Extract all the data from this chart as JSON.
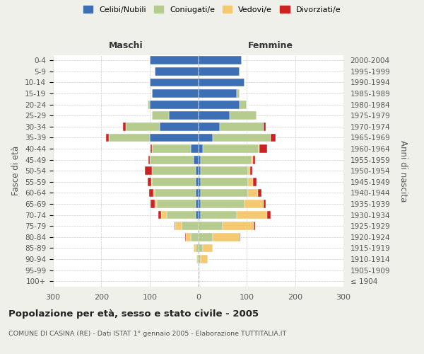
{
  "age_groups": [
    "100+",
    "95-99",
    "90-94",
    "85-89",
    "80-84",
    "75-79",
    "70-74",
    "65-69",
    "60-64",
    "55-59",
    "50-54",
    "45-49",
    "40-44",
    "35-39",
    "30-34",
    "25-29",
    "20-24",
    "15-19",
    "10-14",
    "5-9",
    "0-4"
  ],
  "birth_years": [
    "≤ 1904",
    "1905-1909",
    "1910-1914",
    "1915-1919",
    "1920-1924",
    "1925-1929",
    "1930-1934",
    "1935-1939",
    "1940-1944",
    "1945-1949",
    "1950-1954",
    "1955-1959",
    "1960-1964",
    "1965-1969",
    "1970-1974",
    "1975-1979",
    "1980-1984",
    "1985-1989",
    "1990-1994",
    "1995-1999",
    "2000-2004"
  ],
  "males_celibi": [
    0,
    0,
    0,
    0,
    0,
    0,
    5,
    5,
    5,
    5,
    5,
    10,
    15,
    100,
    80,
    60,
    100,
    95,
    100,
    90,
    100
  ],
  "males_coniugati": [
    0,
    0,
    2,
    5,
    15,
    35,
    60,
    80,
    85,
    90,
    90,
    90,
    80,
    85,
    70,
    35,
    5,
    0,
    0,
    0,
    0
  ],
  "males_vedovi": [
    0,
    0,
    2,
    5,
    10,
    12,
    12,
    5,
    2,
    2,
    0,
    0,
    0,
    0,
    0,
    0,
    0,
    0,
    0,
    0,
    0
  ],
  "males_divorziati": [
    0,
    0,
    0,
    0,
    2,
    2,
    5,
    8,
    10,
    8,
    15,
    3,
    3,
    5,
    5,
    0,
    0,
    0,
    0,
    0,
    0
  ],
  "females_nubili": [
    0,
    0,
    0,
    0,
    0,
    0,
    5,
    5,
    5,
    5,
    5,
    5,
    10,
    30,
    45,
    65,
    85,
    80,
    95,
    85,
    90
  ],
  "females_coniugate": [
    0,
    0,
    5,
    10,
    30,
    50,
    75,
    90,
    98,
    98,
    98,
    105,
    115,
    120,
    90,
    55,
    15,
    5,
    0,
    0,
    0
  ],
  "females_vedove": [
    0,
    2,
    15,
    20,
    55,
    65,
    62,
    40,
    20,
    10,
    5,
    3,
    2,
    0,
    0,
    0,
    0,
    0,
    0,
    0,
    0
  ],
  "females_divorziate": [
    0,
    0,
    0,
    0,
    2,
    2,
    8,
    5,
    8,
    8,
    3,
    5,
    15,
    10,
    5,
    0,
    0,
    0,
    0,
    0,
    0
  ],
  "color_celibi": "#3d6fb5",
  "color_coniugati": "#b5cc8e",
  "color_vedovi": "#f5c872",
  "color_divorziati": "#cc2222",
  "legend_labels": [
    "Celibi/Nubili",
    "Coniugati/e",
    "Vedovi/e",
    "Divorziati/e"
  ],
  "title": "Popolazione per età, sesso e stato civile - 2005",
  "subtitle": "COMUNE DI CASINA (RE) - Dati ISTAT 1° gennaio 2005 - Elaborazione TUTTITALIA.IT",
  "label_maschi": "Maschi",
  "label_femmine": "Femmine",
  "ylabel_left": "Fasce di età",
  "ylabel_right": "Anni di nascita",
  "xlim": 300,
  "bg_color": "#f0f0eb",
  "plot_bg": "#ffffff"
}
